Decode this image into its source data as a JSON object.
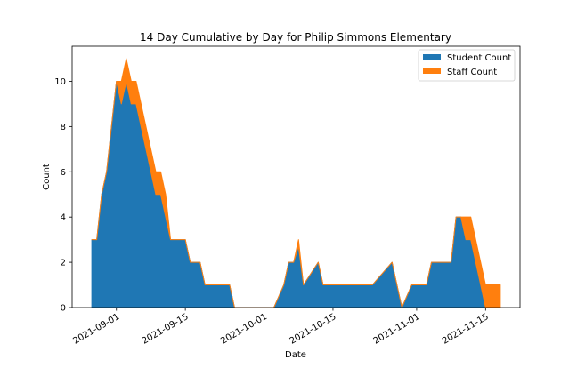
{
  "chart_data": {
    "type": "area",
    "stacked": true,
    "title": "14 Day Cumulative by Day for Philip Simmons Elementary",
    "xlabel": "Date",
    "ylabel": "Count",
    "xlim": [
      "2021-08-23",
      "2021-11-22"
    ],
    "ylim": [
      0,
      11.55
    ],
    "x_ticks": [
      "2021-09-01",
      "2021-09-15",
      "2021-10-01",
      "2021-10-15",
      "2021-11-01",
      "2021-11-15"
    ],
    "y_ticks": [
      0,
      2,
      4,
      6,
      8,
      10
    ],
    "grid": false,
    "legend_position": "top-right",
    "x": [
      "2021-08-27",
      "2021-08-28",
      "2021-08-29",
      "2021-08-30",
      "2021-08-31",
      "2021-09-01",
      "2021-09-02",
      "2021-09-03",
      "2021-09-04",
      "2021-09-05",
      "2021-09-06",
      "2021-09-07",
      "2021-09-08",
      "2021-09-09",
      "2021-09-10",
      "2021-09-11",
      "2021-09-12",
      "2021-09-13",
      "2021-09-14",
      "2021-09-15",
      "2021-09-16",
      "2021-09-17",
      "2021-09-18",
      "2021-09-19",
      "2021-09-20",
      "2021-09-21",
      "2021-09-22",
      "2021-09-23",
      "2021-09-24",
      "2021-09-25",
      "2021-09-26",
      "2021-09-27",
      "2021-09-28",
      "2021-09-29",
      "2021-09-30",
      "2021-10-01",
      "2021-10-02",
      "2021-10-03",
      "2021-10-04",
      "2021-10-05",
      "2021-10-06",
      "2021-10-07",
      "2021-10-08",
      "2021-10-09",
      "2021-10-10",
      "2021-10-11",
      "2021-10-12",
      "2021-10-13",
      "2021-10-14",
      "2021-10-15",
      "2021-10-16",
      "2021-10-17",
      "2021-10-18",
      "2021-10-19",
      "2021-10-20",
      "2021-10-21",
      "2021-10-22",
      "2021-10-23",
      "2021-10-24",
      "2021-10-25",
      "2021-10-26",
      "2021-10-27",
      "2021-10-28",
      "2021-10-29",
      "2021-10-30",
      "2021-10-31",
      "2021-11-01",
      "2021-11-02",
      "2021-11-03",
      "2021-11-04",
      "2021-11-05",
      "2021-11-06",
      "2021-11-07",
      "2021-11-08",
      "2021-11-09",
      "2021-11-10",
      "2021-11-11",
      "2021-11-12",
      "2021-11-13",
      "2021-11-14",
      "2021-11-15",
      "2021-11-16",
      "2021-11-17",
      "2021-11-18"
    ],
    "series": [
      {
        "name": "Student Count",
        "color": "#1f77b4",
        "values": [
          3,
          3,
          5,
          6,
          8,
          10,
          9,
          10,
          9,
          9,
          8,
          7,
          6,
          5,
          5,
          4,
          3,
          3,
          3,
          3,
          2,
          2,
          2,
          1,
          1,
          1,
          1,
          1,
          1,
          0,
          0,
          0,
          0,
          0,
          0,
          0,
          0,
          0,
          0.5,
          1,
          2,
          2,
          2.7,
          1,
          1.33,
          1.67,
          2,
          1,
          1,
          1,
          1,
          1,
          1,
          1,
          1,
          1,
          1,
          1,
          1.25,
          1.5,
          1.75,
          2,
          1,
          0,
          0.5,
          1,
          1,
          1,
          1,
          2,
          2,
          2,
          2,
          2,
          4,
          4,
          3,
          3,
          2,
          1,
          0,
          0,
          0,
          0
        ]
      },
      {
        "name": "Staff Count",
        "color": "#ff7f0e",
        "values": [
          0,
          0,
          0,
          0,
          0,
          0,
          1,
          1,
          1,
          1,
          1,
          1,
          1,
          1,
          1,
          1,
          0,
          0,
          0,
          0,
          0,
          0,
          0,
          0,
          0,
          0,
          0,
          0,
          0,
          0,
          0,
          0,
          0,
          0,
          0,
          0,
          0,
          0,
          0,
          0,
          0,
          0,
          0.3,
          0,
          0,
          0,
          0,
          0,
          0,
          0,
          0,
          0,
          0,
          0,
          0,
          0,
          0,
          0,
          0,
          0,
          0,
          0,
          0,
          0,
          0,
          0,
          0,
          0,
          0,
          0,
          0,
          0,
          0,
          0,
          0,
          0,
          1,
          1,
          1,
          1,
          1,
          1,
          1,
          1
        ]
      }
    ]
  }
}
